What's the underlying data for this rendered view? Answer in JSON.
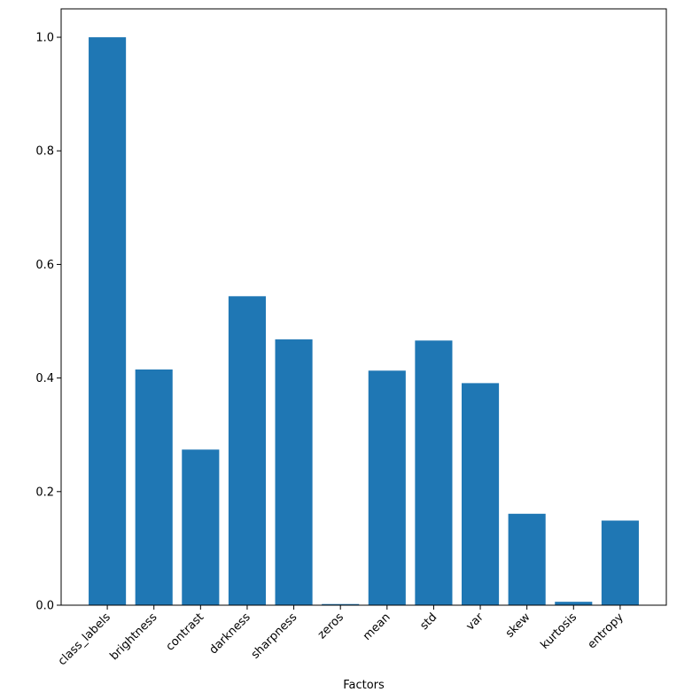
{
  "chart_data": {
    "type": "bar",
    "title": "",
    "xlabel": "Factors",
    "ylabel": "",
    "categories": [
      "class_labels",
      "brightness",
      "contrast",
      "darkness",
      "sharpness",
      "zeros",
      "mean",
      "std",
      "var",
      "skew",
      "kurtosis",
      "entropy"
    ],
    "values": [
      1.0,
      0.415,
      0.274,
      0.544,
      0.468,
      0.002,
      0.413,
      0.466,
      0.391,
      0.161,
      0.006,
      0.149
    ],
    "ylim": [
      0,
      1.05
    ],
    "yticks": [
      0.0,
      0.2,
      0.4,
      0.6,
      0.8,
      1.0
    ],
    "ytick_labels": [
      "0.0",
      "0.2",
      "0.4",
      "0.6",
      "0.8",
      "1.0"
    ],
    "bar_color": "#1f77b4",
    "grid": false,
    "legend": "none"
  }
}
